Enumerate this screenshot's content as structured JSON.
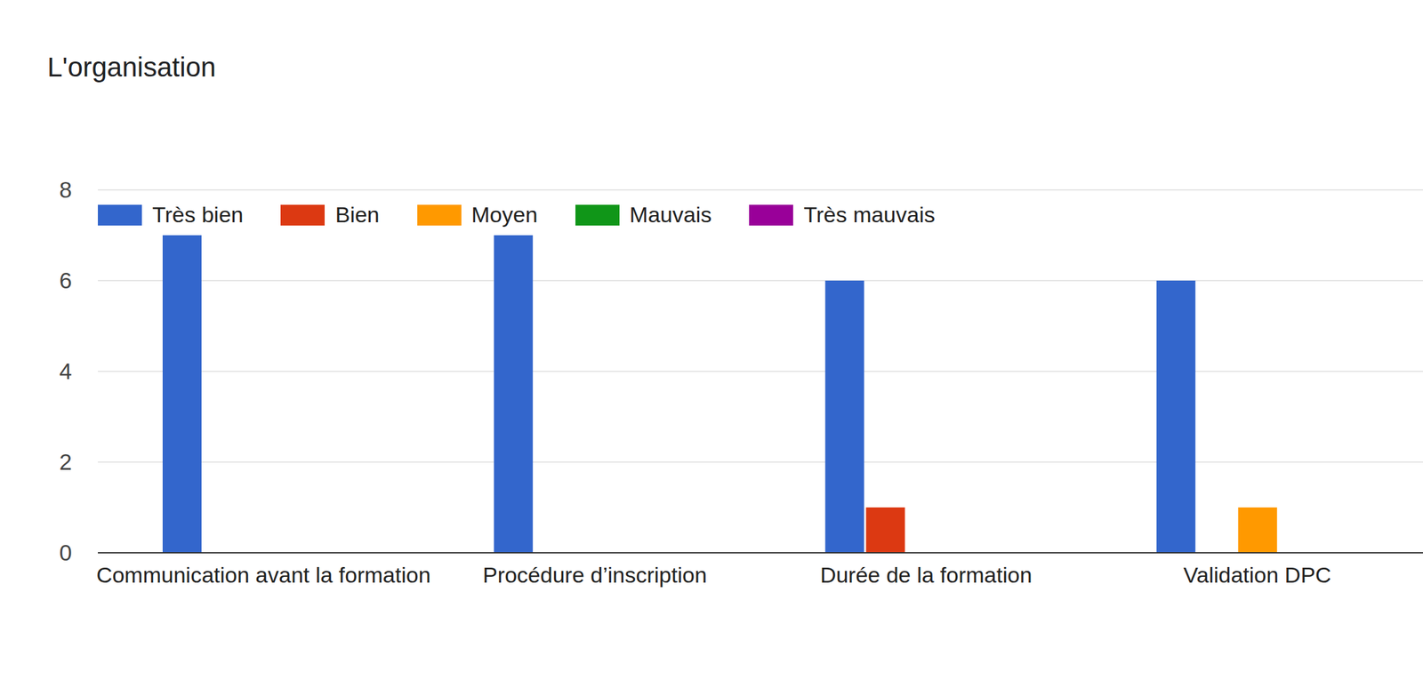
{
  "chart_data": {
    "type": "bar",
    "title": "L'organisation",
    "categories": [
      "Communication avant la formation",
      "Procédure d’inscription",
      "Durée de la formation",
      "Validation DPC"
    ],
    "series": [
      {
        "name": "Très bien",
        "color": "#3366cc",
        "values": [
          7,
          7,
          6,
          6
        ]
      },
      {
        "name": "Bien",
        "color": "#dc3912",
        "values": [
          0,
          0,
          1,
          0
        ]
      },
      {
        "name": "Moyen",
        "color": "#ff9900",
        "values": [
          0,
          0,
          0,
          1
        ]
      },
      {
        "name": "Mauvais",
        "color": "#109618",
        "values": [
          0,
          0,
          0,
          0
        ]
      },
      {
        "name": "Très mauvais",
        "color": "#990099",
        "values": [
          0,
          0,
          0,
          0
        ]
      }
    ],
    "ylim": [
      0,
      8
    ],
    "yticks": [
      0,
      2,
      4,
      6,
      8
    ],
    "grid": true,
    "legend": "top-left"
  }
}
